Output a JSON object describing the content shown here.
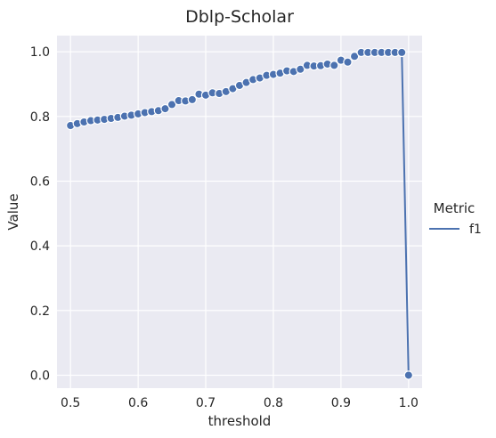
{
  "chart_data": {
    "type": "line",
    "title": "Dblp-Scholar",
    "xlabel": "threshold",
    "ylabel": "Value",
    "xlim": [
      0.48,
      1.02
    ],
    "ylim": [
      -0.04,
      1.05
    ],
    "xticks": [
      0.5,
      0.6,
      0.7,
      0.8,
      0.9,
      1.0
    ],
    "xtick_labels": [
      "0.5",
      "0.6",
      "0.7",
      "0.8",
      "0.9",
      "1.0"
    ],
    "yticks": [
      0.0,
      0.2,
      0.4,
      0.6,
      0.8,
      1.0
    ],
    "ytick_labels": [
      "0.0",
      "0.2",
      "0.4",
      "0.6",
      "0.8",
      "1.0"
    ],
    "grid": true,
    "legend": {
      "title": "Metric",
      "placement": "right"
    },
    "series": [
      {
        "name": "f1",
        "color": "#4c72b0",
        "marker": "circle",
        "x": [
          0.5,
          0.51,
          0.52,
          0.53,
          0.54,
          0.55,
          0.56,
          0.57,
          0.58,
          0.59,
          0.6,
          0.61,
          0.62,
          0.63,
          0.64,
          0.65,
          0.66,
          0.67,
          0.68,
          0.69,
          0.7,
          0.71,
          0.72,
          0.73,
          0.74,
          0.75,
          0.76,
          0.77,
          0.78,
          0.79,
          0.8,
          0.81,
          0.82,
          0.83,
          0.84,
          0.85,
          0.86,
          0.87,
          0.88,
          0.89,
          0.9,
          0.91,
          0.92,
          0.93,
          0.94,
          0.95,
          0.96,
          0.97,
          0.98,
          0.99,
          1.0
        ],
        "y": [
          0.772,
          0.778,
          0.783,
          0.787,
          0.789,
          0.791,
          0.794,
          0.797,
          0.801,
          0.804,
          0.808,
          0.812,
          0.815,
          0.818,
          0.824,
          0.837,
          0.849,
          0.848,
          0.852,
          0.869,
          0.866,
          0.873,
          0.871,
          0.877,
          0.886,
          0.896,
          0.905,
          0.914,
          0.919,
          0.927,
          0.93,
          0.934,
          0.941,
          0.939,
          0.946,
          0.958,
          0.956,
          0.957,
          0.962,
          0.958,
          0.974,
          0.968,
          0.986,
          0.998,
          0.998,
          0.998,
          0.998,
          0.998,
          0.998,
          0.998,
          0.0
        ]
      }
    ]
  }
}
